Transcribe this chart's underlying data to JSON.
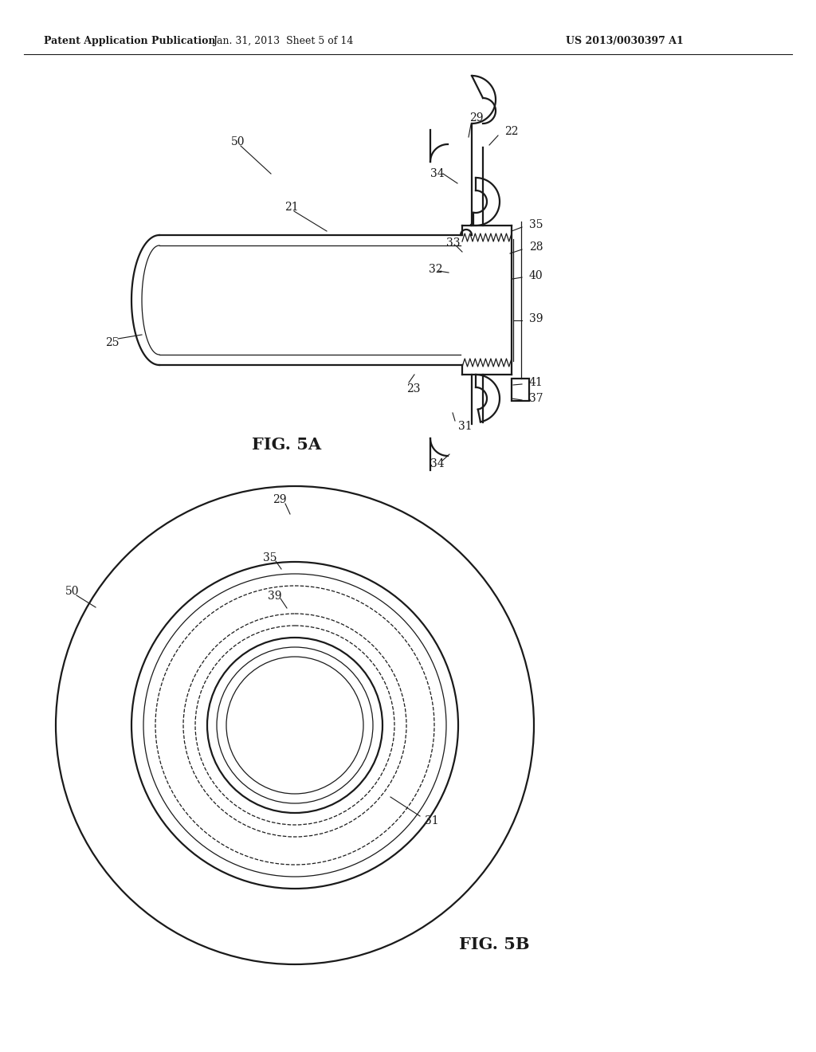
{
  "header_left": "Patent Application Publication",
  "header_mid": "Jan. 31, 2013  Sheet 5 of 14",
  "header_right": "US 2013/0030397 A1",
  "fig5a_label": "FIG. 5A",
  "fig5b_label": "FIG. 5B",
  "background_color": "#ffffff",
  "line_color": "#1a1a1a",
  "font_size_header": 9,
  "font_size_label": 10,
  "font_size_fig": 15,
  "lw_main": 1.6,
  "lw_thin": 0.9,
  "lw_med": 1.2
}
